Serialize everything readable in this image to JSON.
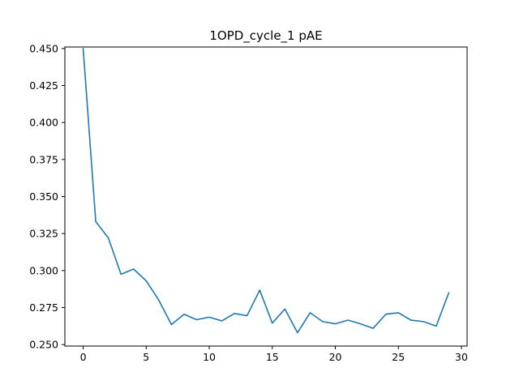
{
  "chart_data": {
    "type": "line",
    "title": "1OPD_cycle_1 pAE",
    "xlabel": "",
    "ylabel": "",
    "xlim": [
      -1.45,
      30.45
    ],
    "ylim": [
      0.249,
      0.451
    ],
    "x_ticks": [
      0,
      5,
      10,
      15,
      20,
      25,
      30
    ],
    "y_ticks": [
      0.25,
      0.275,
      0.3,
      0.325,
      0.35,
      0.375,
      0.4,
      0.425,
      0.45
    ],
    "y_tick_labels": [
      "0.250",
      "0.275",
      "0.300",
      "0.325",
      "0.350",
      "0.375",
      "0.400",
      "0.425",
      "0.450"
    ],
    "grid": false,
    "series": [
      {
        "color": "#1f77b4",
        "x": [
          0,
          1,
          2,
          3,
          4,
          5,
          6,
          7,
          8,
          9,
          10,
          11,
          12,
          13,
          14,
          15,
          16,
          17,
          18,
          19,
          20,
          21,
          22,
          23,
          24,
          25,
          26,
          27,
          28,
          29
        ],
        "y": [
          0.45,
          0.333,
          0.322,
          0.2975,
          0.301,
          0.293,
          0.28,
          0.2635,
          0.2705,
          0.2668,
          0.2685,
          0.266,
          0.271,
          0.2695,
          0.2868,
          0.2645,
          0.274,
          0.258,
          0.2715,
          0.2655,
          0.264,
          0.2665,
          0.264,
          0.261,
          0.2705,
          0.2715,
          0.2665,
          0.2655,
          0.2625,
          0.285
        ]
      }
    ]
  }
}
